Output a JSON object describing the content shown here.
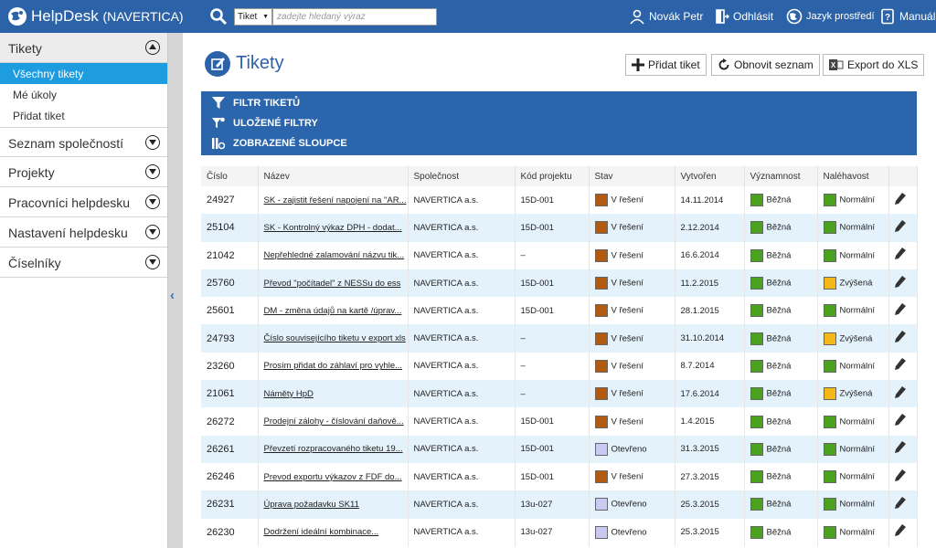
{
  "header": {
    "app_name": "HelpDesk",
    "org": "(NAVERTICA)",
    "search_type": "Tiket",
    "search_placeholder": "zadejte hledaný výraz",
    "user": "Novák Petr",
    "logout": "Odhlásit",
    "language": "Jazyk prostředí",
    "manual": "Manuál"
  },
  "sidebar": {
    "tickets_label": "Tikety",
    "sub_items": [
      "Všechny tikety",
      "Mé úkoly",
      "Přidat tiket"
    ],
    "sections": [
      "Seznam společností",
      "Projekty",
      "Pracovníci helpdesku",
      "Nastavení helpdesku",
      "Číselníky"
    ]
  },
  "main": {
    "title": "Tikety",
    "add_button": "Přidat tiket",
    "refresh_button": "Obnovit seznam",
    "export_button": "Export do XLS",
    "filter_label": "FILTR TIKETŮ",
    "saved_filters_label": "ULOŽENÉ FILTRY",
    "columns_label": "ZOBRAZENÉ SLOUPCE"
  },
  "table": {
    "headers": [
      "Číslo",
      "Název",
      "Společnost",
      "Kód projektu",
      "Stav",
      "Vytvořen",
      "Významnost",
      "Naléhavost"
    ],
    "rows": [
      {
        "num": "24927",
        "name": "SK - zajistit řešení napojení na \"AR...",
        "company": "NAVERTICA a.s.",
        "code": "15D-001",
        "state": "V řešení",
        "created": "14.11.2014",
        "importance": "Běžná",
        "urgency": "Normální"
      },
      {
        "num": "25104",
        "name": "SK - Kontrolný výkaz DPH - dodat...",
        "company": "NAVERTICA a.s.",
        "code": "15D-001",
        "state": "V řešení",
        "created": "2.12.2014",
        "importance": "Běžná",
        "urgency": "Normální"
      },
      {
        "num": "21042",
        "name": "Nepřehledné zalamování názvu tik...",
        "company": "NAVERTICA a.s.",
        "code": "–",
        "state": "V řešení",
        "created": "16.6.2014",
        "importance": "Běžná",
        "urgency": "Normální"
      },
      {
        "num": "25760",
        "name": "Převod \"počítadel\" z NESSu do ess",
        "company": "NAVERTICA a.s.",
        "code": "15D-001",
        "state": "V řešení",
        "created": "11.2.2015",
        "importance": "Běžná",
        "urgency": "Zvýšená"
      },
      {
        "num": "25601",
        "name": "DM - změna údajů na kartě /úprav...",
        "company": "NAVERTICA a.s.",
        "code": "15D-001",
        "state": "V řešení",
        "created": "28.1.2015",
        "importance": "Běžná",
        "urgency": "Normální"
      },
      {
        "num": "24793",
        "name": "Číslo souvisejícího tiketu v export xls",
        "company": "NAVERTICA a.s.",
        "code": "–",
        "state": "V řešení",
        "created": "31.10.2014",
        "importance": "Běžná",
        "urgency": "Zvýšená"
      },
      {
        "num": "23260",
        "name": "Prosím přidat do záhlaví pro vyhle...",
        "company": "NAVERTICA a.s.",
        "code": "–",
        "state": "V řešení",
        "created": "8.7.2014",
        "importance": "Běžná",
        "urgency": "Normální"
      },
      {
        "num": "21061",
        "name": "Náměty HpD",
        "company": "NAVERTICA a.s.",
        "code": "–",
        "state": "V řešení",
        "created": "17.6.2014",
        "importance": "Běžná",
        "urgency": "Zvýšená"
      },
      {
        "num": "26272",
        "name": "Prodejní zálohy - číslování daňově...",
        "company": "NAVERTICA a.s.",
        "code": "15D-001",
        "state": "V řešení",
        "created": "1.4.2015",
        "importance": "Běžná",
        "urgency": "Normální"
      },
      {
        "num": "26261",
        "name": "Převzetí rozpracovaného tiketu 19...",
        "company": "NAVERTICA a.s.",
        "code": "15D-001",
        "state": "Otevřeno",
        "created": "31.3.2015",
        "importance": "Běžná",
        "urgency": "Normální"
      },
      {
        "num": "26246",
        "name": "Prevod exportu výkazov z FDF do...",
        "company": "NAVERTICA a.s.",
        "code": "15D-001",
        "state": "V řešení",
        "created": "27.3.2015",
        "importance": "Běžná",
        "urgency": "Normální"
      },
      {
        "num": "26231",
        "name": "Úprava požadavku SK11",
        "company": "NAVERTICA a.s.",
        "code": "13u-027",
        "state": "Otevřeno",
        "created": "25.3.2015",
        "importance": "Běžná",
        "urgency": "Normální"
      },
      {
        "num": "26230",
        "name": "Dodržení ideální kombinace...",
        "company": "NAVERTICA a.s.",
        "code": "13u-027",
        "state": "Otevřeno",
        "created": "25.3.2015",
        "importance": "Běžná",
        "urgency": "Normální"
      }
    ]
  },
  "colors": {
    "header_bg": "#2c63a8",
    "active_item": "#1e9ce0",
    "state_in_progress": "#b05a12",
    "state_open": "#c9c9f2",
    "importance_normal": "#4aa31f",
    "urgency_normal": "#4aa31f",
    "urgency_raised": "#f5b817"
  },
  "icons": {
    "logo": "globe-logo-icon",
    "search": "search-icon",
    "user": "user-icon",
    "logout": "logout-door-icon",
    "language": "globe-icon",
    "manual": "help-book-icon",
    "filter": "funnel-icon",
    "edit": "pencil-icon"
  }
}
